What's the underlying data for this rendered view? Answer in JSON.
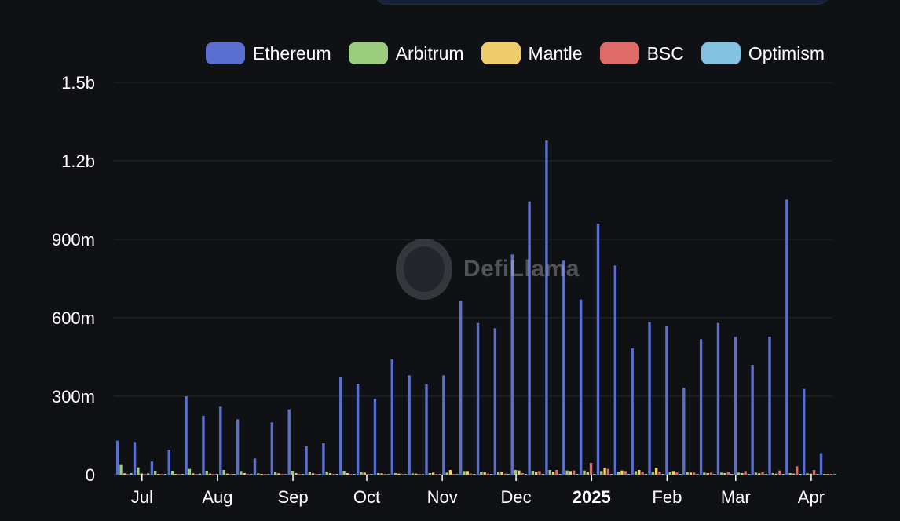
{
  "watermark": {
    "text": "DefiLlama"
  },
  "chart_data": {
    "type": "bar",
    "title": "",
    "xlabel": "",
    "ylabel": "",
    "ylim": [
      0,
      1500000000
    ],
    "yticks": [
      {
        "value": 0,
        "label": "0"
      },
      {
        "value": 300000000,
        "label": "300m"
      },
      {
        "value": 600000000,
        "label": "600m"
      },
      {
        "value": 900000000,
        "label": "900m"
      },
      {
        "value": 1200000000,
        "label": "1.2b"
      },
      {
        "value": 1500000000,
        "label": "1.5b"
      }
    ],
    "xticks": [
      {
        "label": "Jul",
        "index": 1.5,
        "bold": false
      },
      {
        "label": "Aug",
        "index": 5.9,
        "bold": false
      },
      {
        "label": "Sep",
        "index": 10.3,
        "bold": false
      },
      {
        "label": "Oct",
        "index": 14.6,
        "bold": false
      },
      {
        "label": "Nov",
        "index": 19.0,
        "bold": false
      },
      {
        "label": "Dec",
        "index": 23.3,
        "bold": false
      },
      {
        "label": "2025",
        "index": 27.7,
        "bold": true
      },
      {
        "label": "Feb",
        "index": 32.1,
        "bold": false
      },
      {
        "label": "Mar",
        "index": 36.1,
        "bold": false
      },
      {
        "label": "Apr",
        "index": 40.5,
        "bold": false
      }
    ],
    "grid": true,
    "legend_position": "top-right",
    "series": [
      {
        "name": "Ethereum",
        "color": "#5a6fd0",
        "values": [
          130,
          125,
          50,
          95,
          300,
          225,
          260,
          212,
          62,
          200,
          250,
          108,
          120,
          375,
          348,
          290,
          442,
          380,
          345,
          380,
          665,
          580,
          560,
          842,
          1045,
          1278,
          818,
          670,
          960,
          800,
          483,
          583,
          567,
          332,
          518,
          580,
          527,
          420,
          528,
          1052,
          328,
          82
        ]
      },
      {
        "name": "Arbitrum",
        "color": "#9ccc7e",
        "values": [
          40,
          28,
          15,
          15,
          22,
          15,
          18,
          14,
          5,
          12,
          15,
          12,
          12,
          15,
          10,
          6,
          6,
          5,
          6,
          8,
          14,
          12,
          10,
          18,
          15,
          18,
          16,
          16,
          14,
          12,
          14,
          10,
          10,
          10,
          8,
          8,
          8,
          8,
          6,
          6,
          5,
          3
        ]
      },
      {
        "name": "Mantle",
        "color": "#f1cc6b",
        "values": [
          5,
          5,
          3,
          3,
          5,
          4,
          4,
          6,
          3,
          5,
          6,
          5,
          6,
          6,
          8,
          5,
          4,
          4,
          8,
          18,
          14,
          10,
          12,
          16,
          12,
          12,
          14,
          10,
          26,
          16,
          18,
          26,
          14,
          8,
          6,
          6,
          6,
          5,
          4,
          4,
          4,
          2
        ]
      },
      {
        "name": "BSC",
        "color": "#e06c6a",
        "values": [
          2,
          2,
          2,
          2,
          2,
          2,
          2,
          2,
          2,
          2,
          2,
          2,
          2,
          2,
          2,
          2,
          2,
          2,
          2,
          2,
          4,
          4,
          4,
          6,
          14,
          18,
          16,
          45,
          22,
          14,
          12,
          12,
          8,
          8,
          8,
          12,
          14,
          10,
          16,
          32,
          18,
          3
        ]
      },
      {
        "name": "Optimism",
        "color": "#83c1e0",
        "values": [
          6,
          5,
          3,
          3,
          4,
          3,
          3,
          3,
          2,
          2,
          3,
          3,
          3,
          3,
          3,
          2,
          2,
          2,
          2,
          2,
          3,
          3,
          3,
          3,
          3,
          3,
          3,
          3,
          3,
          3,
          3,
          3,
          3,
          3,
          3,
          3,
          3,
          3,
          3,
          3,
          3,
          2
        ]
      }
    ]
  }
}
